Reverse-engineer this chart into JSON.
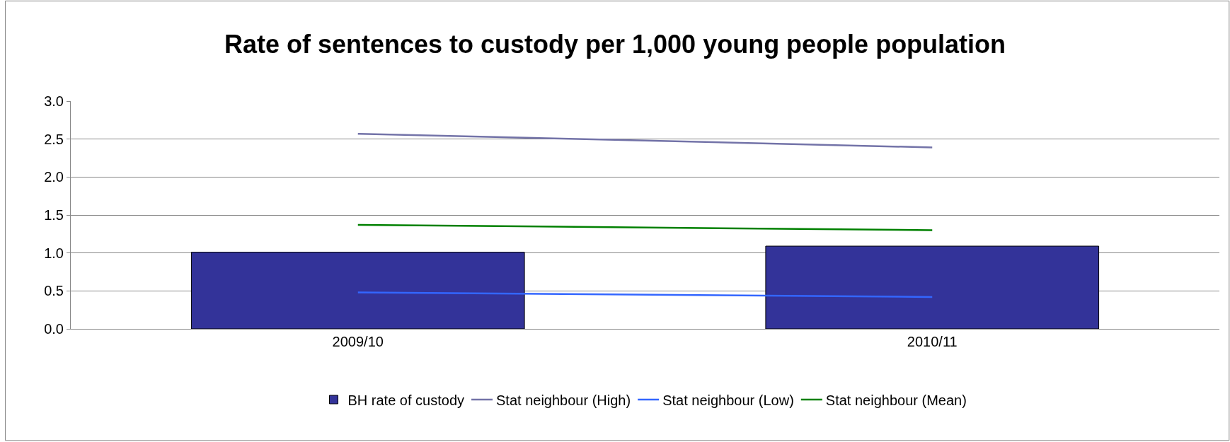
{
  "chart_data": {
    "type": "bar",
    "title": "Rate of sentences to custody per 1,000 young people population",
    "categories": [
      "2009/10",
      "2010/11"
    ],
    "series": [
      {
        "name": "BH rate of custody",
        "color": "#333399",
        "values": [
          1.01,
          1.09
        ]
      },
      {
        "name": "Stat neighbour (High)",
        "type": "line",
        "color": "#7373a8",
        "values": [
          2.57,
          2.39
        ]
      },
      {
        "name": "Stat neighbour (Low)",
        "type": "line",
        "color": "#3366ff",
        "values": [
          0.48,
          0.42
        ]
      },
      {
        "name": "Stat neighbour (Mean)",
        "type": "line",
        "color": "#008000",
        "values": [
          1.37,
          1.3
        ]
      }
    ],
    "ylim": [
      0,
      3
    ],
    "yticks": [
      {
        "value": 0,
        "label": "0.0"
      },
      {
        "value": 0.5,
        "label": "0.5"
      },
      {
        "value": 1,
        "label": "1.0"
      },
      {
        "value": 1.5,
        "label": "1.5"
      },
      {
        "value": 2,
        "label": "2.0"
      },
      {
        "value": 2.5,
        "label": "2.5"
      },
      {
        "value": 3,
        "label": "3.0"
      }
    ],
    "grid": "y",
    "legend": "bottom",
    "marker": "none",
    "line_style": "solid"
  }
}
